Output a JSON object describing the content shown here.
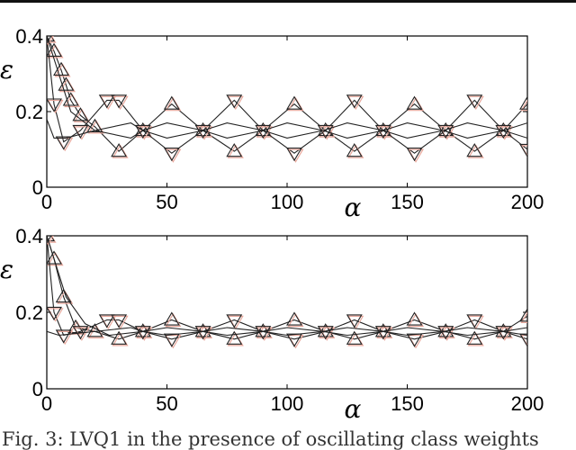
{
  "caption": "Fig. 3: LVQ1 in the presence of oscillating class weights",
  "chart_data": [
    {
      "type": "line",
      "xlabel": "α",
      "ylabel": "ε",
      "xlim": [
        0,
        200
      ],
      "ylim": [
        0,
        0.4
      ],
      "xticks": [
        "0",
        "50",
        "100",
        "150",
        "200"
      ],
      "yticks": [
        "0",
        "0.2",
        "0.4"
      ],
      "grid": false,
      "series": [
        {
          "marker": "triangle-up",
          "values": [
            [
              0,
              0.4
            ],
            [
              3,
              0.36
            ],
            [
              6,
              0.31
            ],
            [
              8,
              0.27
            ],
            [
              10,
              0.23
            ],
            [
              14,
              0.19
            ],
            [
              20,
              0.16
            ],
            [
              30,
              0.095
            ],
            [
              40,
              0.15
            ],
            [
              52,
              0.22
            ],
            [
              65,
              0.15
            ],
            [
              78,
              0.095
            ],
            [
              90,
              0.15
            ],
            [
              103,
              0.22
            ],
            [
              116,
              0.15
            ],
            [
              128,
              0.095
            ],
            [
              140,
              0.15
            ],
            [
              153,
              0.22
            ],
            [
              166,
              0.15
            ],
            [
              178,
              0.095
            ],
            [
              190,
              0.15
            ],
            [
              200,
              0.22
            ]
          ]
        },
        {
          "marker": "triangle-down",
          "values": [
            [
              0,
              0.4
            ],
            [
              3,
              0.22
            ],
            [
              7,
              0.12
            ],
            [
              14,
              0.15
            ],
            [
              25,
              0.23
            ],
            [
              30,
              0.23
            ],
            [
              40,
              0.15
            ],
            [
              52,
              0.09
            ],
            [
              65,
              0.15
            ],
            [
              78,
              0.23
            ],
            [
              90,
              0.15
            ],
            [
              103,
              0.09
            ],
            [
              116,
              0.15
            ],
            [
              128,
              0.23
            ],
            [
              140,
              0.15
            ],
            [
              153,
              0.09
            ],
            [
              166,
              0.15
            ],
            [
              178,
              0.23
            ],
            [
              190,
              0.15
            ],
            [
              200,
              0.1
            ]
          ]
        },
        {
          "marker": "none",
          "values": [
            [
              0,
              0.18
            ],
            [
              3,
              0.13
            ],
            [
              8,
              0.13
            ],
            [
              20,
              0.15
            ],
            [
              35,
              0.17
            ],
            [
              40,
              0.15
            ],
            [
              50,
              0.13
            ],
            [
              65,
              0.15
            ],
            [
              75,
              0.17
            ],
            [
              90,
              0.15
            ],
            [
              100,
              0.13
            ],
            [
              115,
              0.15
            ],
            [
              125,
              0.17
            ],
            [
              140,
              0.15
            ],
            [
              150,
              0.13
            ],
            [
              165,
              0.15
            ],
            [
              175,
              0.17
            ],
            [
              190,
              0.15
            ],
            [
              200,
              0.13
            ]
          ]
        },
        {
          "marker": "none",
          "values": [
            [
              0,
              0.4
            ],
            [
              5,
              0.3
            ],
            [
              10,
              0.2
            ],
            [
              20,
              0.15
            ],
            [
              35,
              0.13
            ],
            [
              40,
              0.15
            ],
            [
              50,
              0.17
            ],
            [
              65,
              0.15
            ],
            [
              75,
              0.13
            ],
            [
              90,
              0.15
            ],
            [
              100,
              0.17
            ],
            [
              115,
              0.15
            ],
            [
              125,
              0.13
            ],
            [
              140,
              0.15
            ],
            [
              150,
              0.17
            ],
            [
              165,
              0.15
            ],
            [
              175,
              0.13
            ],
            [
              190,
              0.15
            ],
            [
              200,
              0.17
            ]
          ]
        }
      ]
    },
    {
      "type": "line",
      "xlabel": "α",
      "ylabel": "ε",
      "xlim": [
        0,
        200
      ],
      "ylim": [
        0,
        0.4
      ],
      "xticks": [
        "0",
        "50",
        "100",
        "150",
        "200"
      ],
      "yticks": [
        "0",
        "0.2",
        "0.4"
      ],
      "grid": false,
      "series": [
        {
          "marker": "triangle-up",
          "values": [
            [
              0,
              0.4
            ],
            [
              3,
              0.34
            ],
            [
              7,
              0.24
            ],
            [
              12,
              0.16
            ],
            [
              20,
              0.15
            ],
            [
              30,
              0.13
            ],
            [
              40,
              0.15
            ],
            [
              52,
              0.18
            ],
            [
              65,
              0.15
            ],
            [
              78,
              0.13
            ],
            [
              90,
              0.15
            ],
            [
              103,
              0.18
            ],
            [
              116,
              0.15
            ],
            [
              128,
              0.13
            ],
            [
              140,
              0.15
            ],
            [
              153,
              0.18
            ],
            [
              166,
              0.15
            ],
            [
              178,
              0.13
            ],
            [
              190,
              0.15
            ],
            [
              200,
              0.19
            ]
          ]
        },
        {
          "marker": "triangle-down",
          "values": [
            [
              0,
              0.4
            ],
            [
              3,
              0.2
            ],
            [
              7,
              0.14
            ],
            [
              14,
              0.15
            ],
            [
              25,
              0.18
            ],
            [
              30,
              0.18
            ],
            [
              40,
              0.15
            ],
            [
              52,
              0.13
            ],
            [
              65,
              0.15
            ],
            [
              78,
              0.18
            ],
            [
              90,
              0.15
            ],
            [
              103,
              0.13
            ],
            [
              116,
              0.15
            ],
            [
              128,
              0.18
            ],
            [
              140,
              0.15
            ],
            [
              153,
              0.13
            ],
            [
              166,
              0.15
            ],
            [
              178,
              0.18
            ],
            [
              190,
              0.15
            ],
            [
              200,
              0.13
            ]
          ]
        },
        {
          "marker": "none",
          "values": [
            [
              0,
              0.15
            ],
            [
              5,
              0.14
            ],
            [
              20,
              0.15
            ],
            [
              35,
              0.16
            ],
            [
              40,
              0.15
            ],
            [
              50,
              0.14
            ],
            [
              65,
              0.15
            ],
            [
              75,
              0.16
            ],
            [
              90,
              0.15
            ],
            [
              100,
              0.14
            ],
            [
              115,
              0.15
            ],
            [
              125,
              0.16
            ],
            [
              140,
              0.15
            ],
            [
              150,
              0.14
            ],
            [
              165,
              0.15
            ],
            [
              175,
              0.16
            ],
            [
              190,
              0.15
            ],
            [
              200,
              0.14
            ]
          ]
        },
        {
          "marker": "none",
          "values": [
            [
              0,
              0.4
            ],
            [
              8,
              0.24
            ],
            [
              16,
              0.17
            ],
            [
              26,
              0.14
            ],
            [
              40,
              0.15
            ],
            [
              50,
              0.16
            ],
            [
              65,
              0.15
            ],
            [
              75,
              0.14
            ],
            [
              90,
              0.15
            ],
            [
              100,
              0.16
            ],
            [
              115,
              0.15
            ],
            [
              125,
              0.14
            ],
            [
              140,
              0.15
            ],
            [
              150,
              0.16
            ],
            [
              165,
              0.15
            ],
            [
              175,
              0.14
            ],
            [
              190,
              0.15
            ],
            [
              200,
              0.16
            ]
          ]
        }
      ]
    }
  ]
}
